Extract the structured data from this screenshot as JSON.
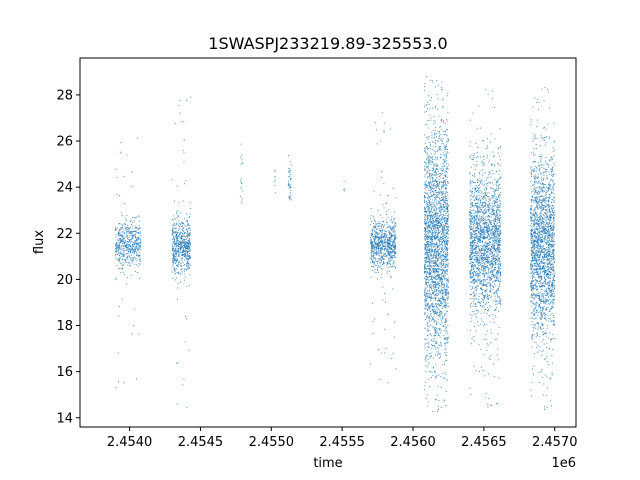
{
  "chart_data": {
    "type": "scatter",
    "title": "1SWASPJ233219.89-325553.0",
    "xlabel": "time",
    "ylabel": "flux",
    "x_offset_label": "1e6",
    "xlim": [
      2.45365,
      2.45715
    ],
    "ylim": [
      13.6,
      29.6
    ],
    "x_ticks": [
      2.454,
      2.4545,
      2.455,
      2.4555,
      2.456,
      2.4565,
      2.457
    ],
    "x_tick_labels": [
      "2.4540",
      "2.4545",
      "2.4550",
      "2.4555",
      "2.4560",
      "2.4565",
      "2.4570"
    ],
    "y_ticks": [
      14,
      16,
      18,
      20,
      22,
      24,
      26,
      28
    ],
    "y_tick_labels": [
      "14",
      "16",
      "18",
      "20",
      "22",
      "24",
      "26",
      "28"
    ],
    "grid": false,
    "legend": "none",
    "marker_color": "#1f77b4",
    "clusters": [
      {
        "x_range": [
          2.4539,
          2.45408
        ],
        "center": 21.5,
        "spread": 0.5,
        "min": 14.3,
        "max": 26.3,
        "outlier_frac": 0.08,
        "n": 520
      },
      {
        "x_range": [
          2.4543,
          2.45443
        ],
        "center": 21.4,
        "spread": 0.6,
        "min": 14.3,
        "max": 28.1,
        "outlier_frac": 0.07,
        "n": 620
      },
      {
        "x_range": [
          2.45478,
          2.4548
        ],
        "center": 24.5,
        "spread": 0.9,
        "min": 23.1,
        "max": 26.0,
        "outlier_frac": 0.0,
        "n": 18
      },
      {
        "x_range": [
          2.45502,
          2.45503
        ],
        "center": 24.2,
        "spread": 0.4,
        "min": 23.6,
        "max": 24.8,
        "outlier_frac": 0.0,
        "n": 8
      },
      {
        "x_range": [
          2.45512,
          2.45514
        ],
        "center": 24.3,
        "spread": 0.6,
        "min": 23.3,
        "max": 25.4,
        "outlier_frac": 0.0,
        "n": 40
      },
      {
        "x_range": [
          2.45551,
          2.45552
        ],
        "center": 24.0,
        "spread": 0.3,
        "min": 23.6,
        "max": 24.4,
        "outlier_frac": 0.0,
        "n": 4
      },
      {
        "x_range": [
          2.4557,
          2.45588
        ],
        "center": 21.5,
        "spread": 0.55,
        "min": 15.3,
        "max": 27.6,
        "outlier_frac": 0.08,
        "n": 760
      },
      {
        "x_range": [
          2.45608,
          2.45625
        ],
        "center": 21.5,
        "spread": 2.4,
        "min": 14.2,
        "max": 28.8,
        "outlier_frac": 0.05,
        "n": 2400
      },
      {
        "x_range": [
          2.4564,
          2.45662
        ],
        "center": 21.6,
        "spread": 1.5,
        "min": 14.3,
        "max": 28.4,
        "outlier_frac": 0.05,
        "n": 2000
      },
      {
        "x_range": [
          2.45683,
          2.457
        ],
        "center": 21.4,
        "spread": 1.9,
        "min": 14.2,
        "max": 28.7,
        "outlier_frac": 0.05,
        "n": 2000
      }
    ]
  }
}
